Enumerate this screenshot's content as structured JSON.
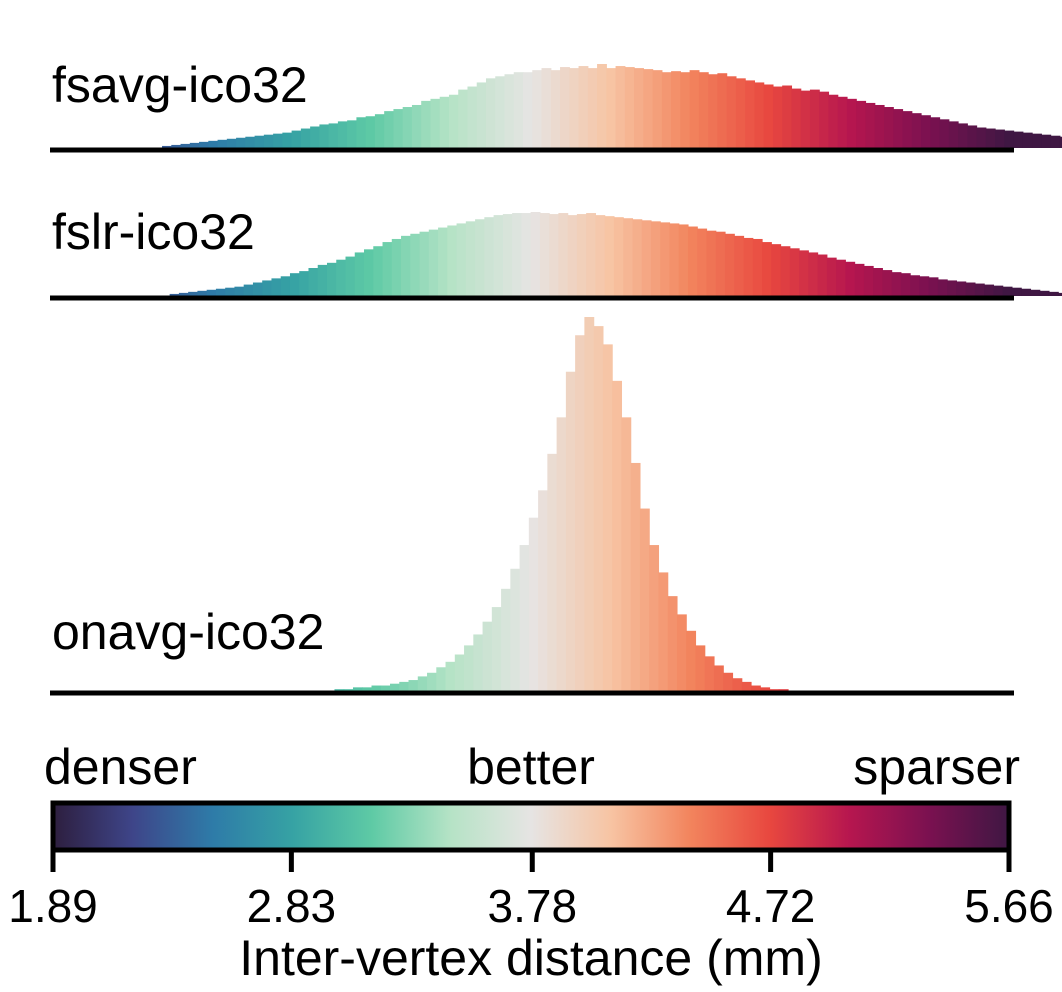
{
  "chart_data": {
    "type": "bar",
    "xlabel": "Inter-vertex distance (mm)",
    "xlim": [
      1.89,
      5.66
    ],
    "ticks": [
      "1.89",
      "2.83",
      "3.78",
      "4.72",
      "5.66"
    ],
    "colorbar": {
      "left_label": "denser",
      "center_label": "better",
      "right_label": "sparser",
      "colormap": "icefire",
      "stops": [
        "#2d1e3e",
        "#3e4589",
        "#2e7ba8",
        "#36a2a4",
        "#5ecaa5",
        "#b6e3c6",
        "#e6e4e3",
        "#f7c4a3",
        "#f2845d",
        "#e8473f",
        "#b6164f",
        "#7a1150",
        "#3f1743"
      ]
    },
    "series": [
      {
        "name": "fsavg-ico32",
        "x_start": 2.32,
        "bin_width": 0.0365,
        "values": [
          2,
          3,
          4,
          5,
          6,
          7,
          8,
          9,
          10,
          11,
          12,
          13,
          14,
          15,
          17,
          19,
          21,
          23,
          24,
          26,
          27,
          30,
          31,
          33,
          36,
          38,
          40,
          42,
          46,
          48,
          50,
          52,
          57,
          60,
          64,
          68,
          70,
          72,
          74,
          74,
          76,
          78,
          76,
          79,
          78,
          80,
          78,
          82,
          78,
          80,
          79,
          78,
          77,
          76,
          74,
          75,
          74,
          76,
          74,
          72,
          73,
          70,
          68,
          66,
          64,
          62,
          60,
          61,
          58,
          56,
          57,
          55,
          52,
          50,
          48,
          46,
          44,
          42,
          40,
          38,
          36,
          34,
          32,
          30,
          28,
          26,
          24,
          22,
          20,
          19,
          18,
          17,
          16,
          15,
          14,
          13,
          12,
          11,
          10,
          9,
          8,
          7,
          6,
          5,
          4,
          3,
          2,
          2,
          1,
          1
        ]
      },
      {
        "name": "fslr-ico32",
        "x_start": 2.35,
        "bin_width": 0.0365,
        "values": [
          2,
          3,
          4,
          5,
          6,
          7,
          8,
          9,
          11,
          13,
          15,
          17,
          19,
          22,
          24,
          27,
          30,
          32,
          35,
          38,
          42,
          45,
          48,
          52,
          55,
          58,
          60,
          62,
          64,
          66,
          68,
          70,
          72,
          74,
          76,
          78,
          79,
          80,
          80,
          81,
          80,
          79,
          80,
          78,
          79,
          80,
          78,
          77,
          76,
          75,
          74,
          73,
          72,
          71,
          70,
          69,
          67,
          65,
          63,
          62,
          60,
          58,
          56,
          55,
          52,
          50,
          48,
          46,
          44,
          42,
          40,
          37,
          35,
          33,
          31,
          29,
          27,
          25,
          23,
          22,
          20,
          19,
          18,
          16,
          15,
          14,
          13,
          12,
          11,
          10,
          9,
          8,
          7,
          6,
          5,
          4,
          3,
          2,
          2,
          2,
          1,
          1,
          1
        ]
      },
      {
        "name": "onavg-ico32",
        "x_start": 3.0,
        "bin_width": 0.0365,
        "values": [
          1,
          1,
          2,
          2,
          3,
          3,
          4,
          5,
          6,
          8,
          10,
          13,
          16,
          20,
          25,
          31,
          38,
          46,
          56,
          67,
          80,
          95,
          110,
          130,
          150,
          175,
          195,
          205,
          200,
          190,
          170,
          150,
          125,
          100,
          80,
          65,
          52,
          42,
          33,
          25,
          19,
          14,
          10,
          7,
          5,
          3,
          2,
          1,
          1
        ]
      }
    ]
  }
}
